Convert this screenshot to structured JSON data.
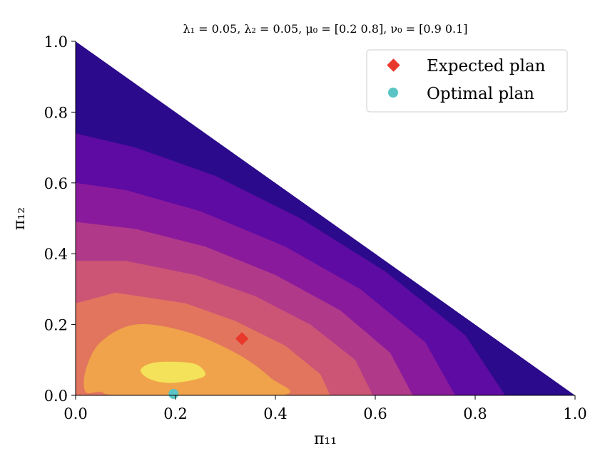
{
  "chart_data": {
    "type": "contour",
    "title": "λ₁ = 0.05, λ₂ = 0.05, μ₀ = [0.2 0.8], ν₀ = [0.9 0.1]",
    "xlabel": "π₁₁",
    "ylabel": "π₁₂",
    "xlim": [
      0.0,
      1.0
    ],
    "ylim": [
      0.0,
      1.0
    ],
    "xticks": [
      "0.0",
      "0.2",
      "0.4",
      "0.6",
      "0.8",
      "1.0"
    ],
    "yticks": [
      "0.0",
      "0.2",
      "0.4",
      "0.6",
      "0.8",
      "1.0"
    ],
    "colormap": "plasma",
    "domain": "simplex: x + y ≤ 1",
    "contour_levels": [
      {
        "color": "#2b0a8b",
        "x_at_y0": 1.0
      },
      {
        "color": "#5d0ba3",
        "x_at_y0": 0.86
      },
      {
        "color": "#8a1a9c",
        "x_at_y0": 0.76
      },
      {
        "color": "#b0398a",
        "x_at_y0": 0.675
      },
      {
        "color": "#cc5475",
        "x_at_y0": 0.595
      },
      {
        "color": "#e2755e",
        "x_at_y0": 0.51
      },
      {
        "color": "#f0a34a",
        "x_at_y0": 0.41
      },
      {
        "color": "#f4e25a",
        "x_at_y0": 0.26
      }
    ],
    "series": [
      {
        "name": "Expected plan",
        "marker": "diamond",
        "color": "#e8392c",
        "x": 0.333,
        "y": 0.16
      },
      {
        "name": "Optimal plan",
        "marker": "circle",
        "color": "#5bc4c4",
        "x": 0.196,
        "y": 0.004
      }
    ],
    "legend": {
      "position": "upper-right",
      "entries": [
        "Expected plan",
        "Optimal plan"
      ]
    },
    "grid": false
  }
}
